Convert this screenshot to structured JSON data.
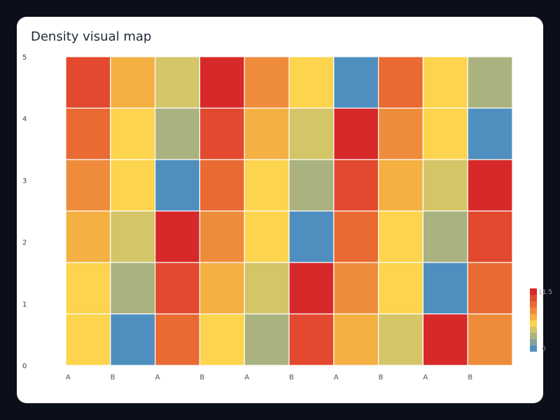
{
  "chart_data": {
    "type": "heatmap",
    "title": "Density visual map",
    "x_categories": [
      "A",
      "B",
      "A",
      "B",
      "A",
      "B",
      "A",
      "B",
      "A",
      "B"
    ],
    "y_ticks": [
      "0",
      "1",
      "2",
      "3",
      "4",
      "5"
    ],
    "rows_top_to_bottom": [
      [
        9.5,
        6.5,
        4.0,
        10.5,
        7.5,
        5.0,
        1.0,
        8.5,
        5.5,
        2.5
      ],
      [
        8.5,
        5.5,
        2.5,
        9.5,
        6.5,
        4.0,
        10.5,
        7.5,
        5.0,
        1.0
      ],
      [
        7.5,
        5.0,
        1.0,
        8.5,
        5.5,
        2.5,
        9.5,
        6.5,
        4.0,
        10.5
      ],
      [
        6.5,
        4.0,
        10.5,
        7.5,
        5.0,
        1.0,
        8.5,
        5.5,
        2.5,
        9.5
      ],
      [
        5.5,
        2.5,
        9.5,
        6.5,
        4.0,
        10.5,
        7.5,
        5.0,
        1.0,
        8.5
      ],
      [
        5.0,
        1.0,
        8.5,
        5.5,
        2.5,
        9.5,
        6.5,
        4.0,
        10.5,
        7.5
      ]
    ],
    "colorbar": {
      "min": 0,
      "max": 11.5,
      "min_label": "0",
      "max_label": "11.5"
    },
    "colors": [
      "#4f8fc0",
      "#84a19a",
      "#aab37f",
      "#d4c569",
      "#fcd44d",
      "#f4b042",
      "#ef8c3b",
      "#e96a33",
      "#e2492e",
      "#d7292a"
    ],
    "grid": false,
    "legend": "right-bottom"
  }
}
